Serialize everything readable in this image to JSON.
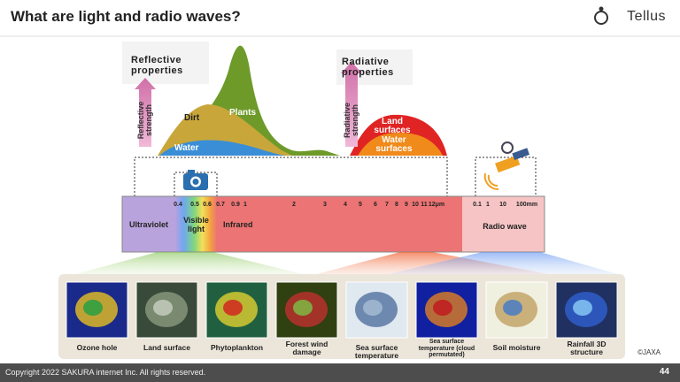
{
  "header": {
    "title": "What are light and radio waves?",
    "logo": "Tellus"
  },
  "reflective": {
    "heading": "Reflective properties",
    "axis": "Reflective strength",
    "labels": [
      "Dirt",
      "Plants",
      "Water"
    ]
  },
  "radiative": {
    "heading": "Radiative properties",
    "axis": "Radiative strength",
    "labels": [
      "Land surfaces",
      "Water surfaces"
    ]
  },
  "spectrum": {
    "wavelength_ticks": [
      "0.4",
      "0.5",
      "0.6",
      "0.7",
      "0.9",
      "1",
      "2",
      "3",
      "4",
      "5",
      "6",
      "7",
      "8",
      "9",
      "10",
      "11",
      "12μm"
    ],
    "radio_ticks": [
      "0.1",
      "1",
      "10",
      "100mm"
    ],
    "bands": [
      "Ultraviolet",
      "Visible light",
      "Infrared",
      "Radio wave"
    ]
  },
  "applications": [
    "Ozone hole",
    "Land surface",
    "Phytoplankton",
    "Forest wind damage",
    "Sea surface temperature",
    "Sea surface temperature (cloud permutated)",
    "Soil moisture",
    "Rainfall 3D structure"
  ],
  "credit": "©JAXA",
  "footer": {
    "copyright": "Copyright 2022 SAKURA internet Inc. All rights reserved.",
    "page": 44
  }
}
